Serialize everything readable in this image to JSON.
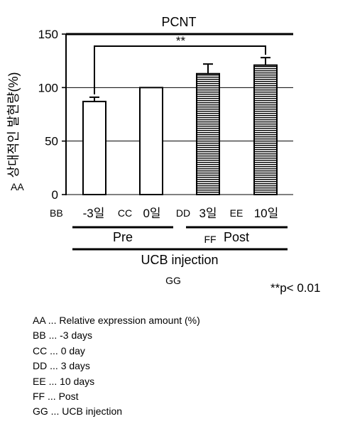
{
  "chart_data": {
    "type": "bar",
    "title": "PCNT",
    "ylabel": "상대적인 발현량(%)",
    "ylabel_code": "AA",
    "xlabel_code": "BB",
    "ylim": [
      0,
      150
    ],
    "yticks": [
      0,
      50,
      100,
      150
    ],
    "grid": true,
    "categories": [
      "-3일",
      "0일",
      "3일",
      "10일"
    ],
    "category_codes": [
      "",
      "CC",
      "DD",
      "EE"
    ],
    "values": [
      87,
      100,
      113,
      121
    ],
    "errors": [
      4,
      0,
      9,
      7
    ],
    "bar_styles": [
      "open",
      "open",
      "hatched",
      "hatched"
    ],
    "groups": [
      {
        "label": "Pre",
        "code": ""
      },
      {
        "label": "Post",
        "code": "FF"
      }
    ],
    "super_group": {
      "label": "UCB injection",
      "code": "GG"
    },
    "significance": {
      "label": "**",
      "between": [
        0,
        3
      ]
    },
    "annotation": "**p< 0.01"
  },
  "legend": [
    {
      "code": "AA",
      "text": "Relative expression amount (%)"
    },
    {
      "code": "BB",
      "text": "-3 days"
    },
    {
      "code": "CC",
      "text": "0 day"
    },
    {
      "code": "DD",
      "text": "3 days"
    },
    {
      "code": "EE",
      "text": "10 days"
    },
    {
      "code": "FF",
      "text": "Post"
    },
    {
      "code": "GG",
      "text": "UCB injection"
    }
  ],
  "colors": {
    "ink": "#000000",
    "background": "#ffffff"
  }
}
